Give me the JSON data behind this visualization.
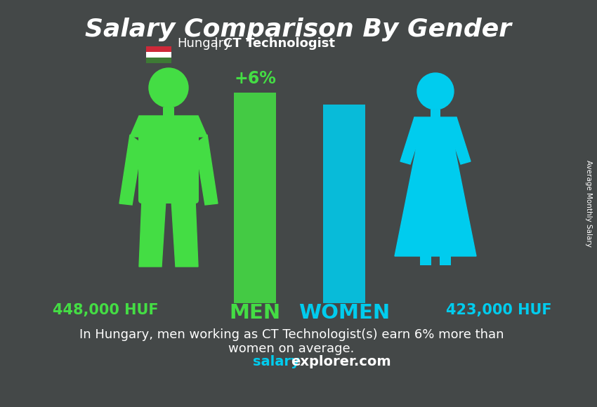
{
  "title": "Salary Comparison By Gender",
  "subtitle_country": "Hungary",
  "subtitle_job": "CT Technologist",
  "man_salary": "448,000 HUF",
  "woman_salary": "423,000 HUF",
  "man_value": 448000,
  "woman_value": 423000,
  "percent_label": "+6%",
  "man_color": "#44dd44",
  "woman_color": "#00ccee",
  "bar_man_color": "#44dd44",
  "bar_woman_color": "#00ccee",
  "percent_color": "#44dd44",
  "bg_color": "#555a5a",
  "overlay_color": "#3a3e3e",
  "text_color": "#ffffff",
  "salary_man_color": "#44dd44",
  "salary_woman_color": "#00ccee",
  "men_label_color": "#44dd44",
  "women_label_color": "#00ccee",
  "footer_text1": "In Hungary, men working as CT Technologist(s) earn 6% more than",
  "footer_text2": "women on average.",
  "website_salary": "salary",
  "website_rest": "explorer.com",
  "website_color1": "#00ccee",
  "website_color2": "#ffffff",
  "ylabel": "Average Monthly Salary",
  "flag_red": "#ce2939",
  "flag_white": "#ffffff",
  "flag_green": "#3d7a34",
  "title_fontsize": 26,
  "subtitle_fontsize": 13,
  "salary_fontsize": 15,
  "label_fontsize": 21,
  "footer_fontsize": 13,
  "website_fontsize": 14,
  "percent_fontsize": 17
}
